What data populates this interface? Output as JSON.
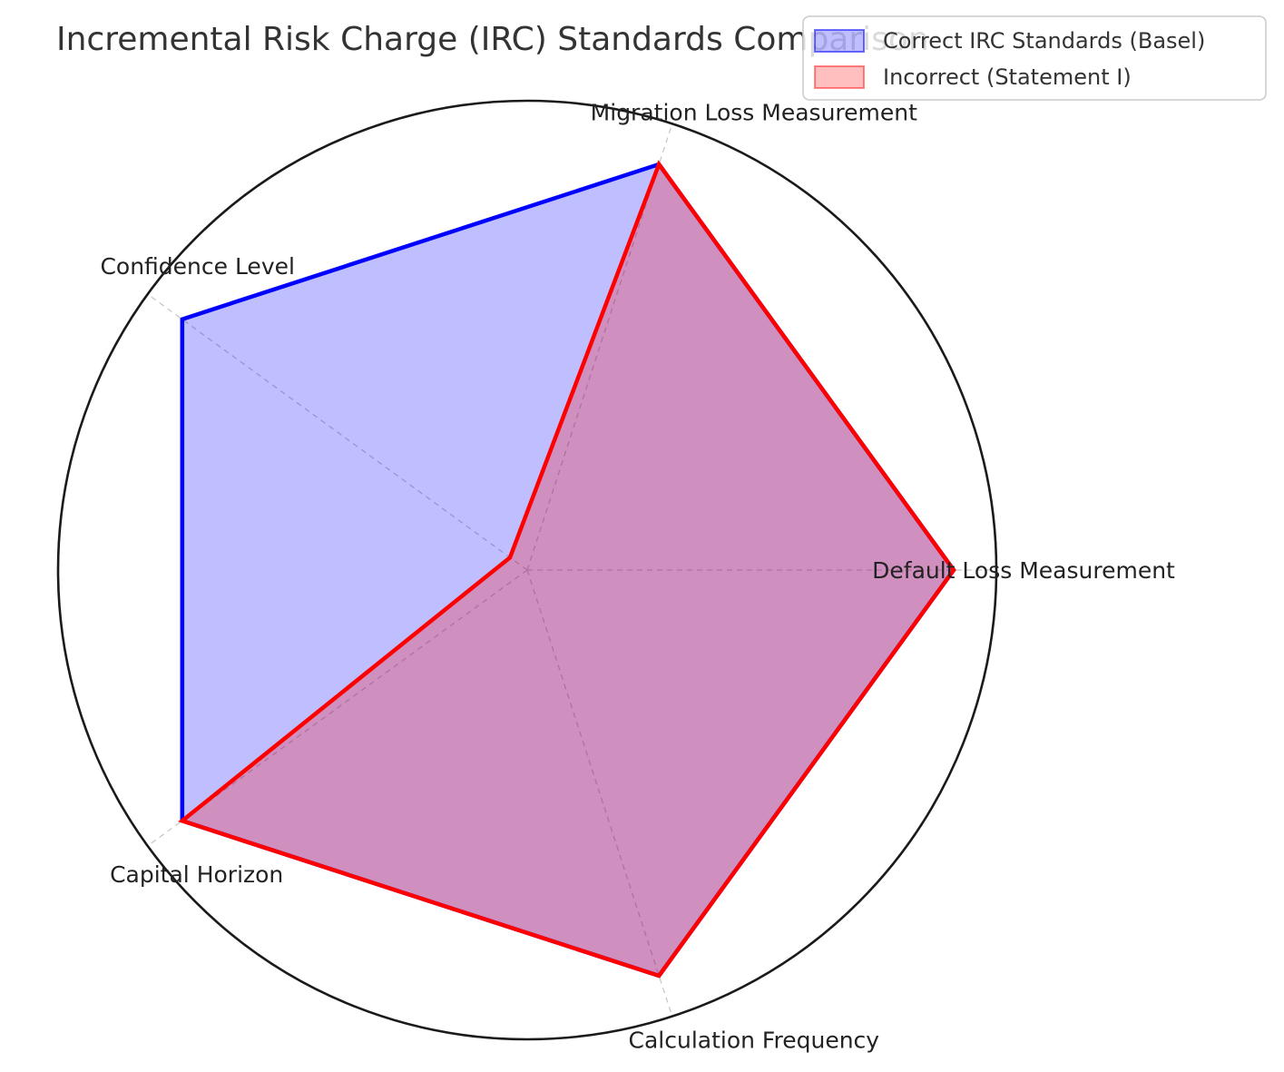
{
  "chart_data": {
    "type": "radar",
    "title": "Incremental Risk Charge (IRC) Standards Comparison",
    "axes": [
      "Default Loss Measurement",
      "Migration Loss Measurement",
      "Confidence Level",
      "Capital Horizon",
      "Calculation Frequency"
    ],
    "rlim": [
      0,
      1.1
    ],
    "grid": true,
    "legend_position": "top-right",
    "series": [
      {
        "name": "Correct IRC Standards (Basel)",
        "values": [
          1,
          1,
          1,
          1,
          1
        ],
        "line_color": "#0000ff",
        "fill_color": "#0000ff"
      },
      {
        "name": "Incorrect (Statement I)",
        "values": [
          1,
          1,
          0.05,
          1,
          1
        ],
        "line_color": "#ff0000",
        "fill_color": "#ff0000"
      }
    ]
  }
}
